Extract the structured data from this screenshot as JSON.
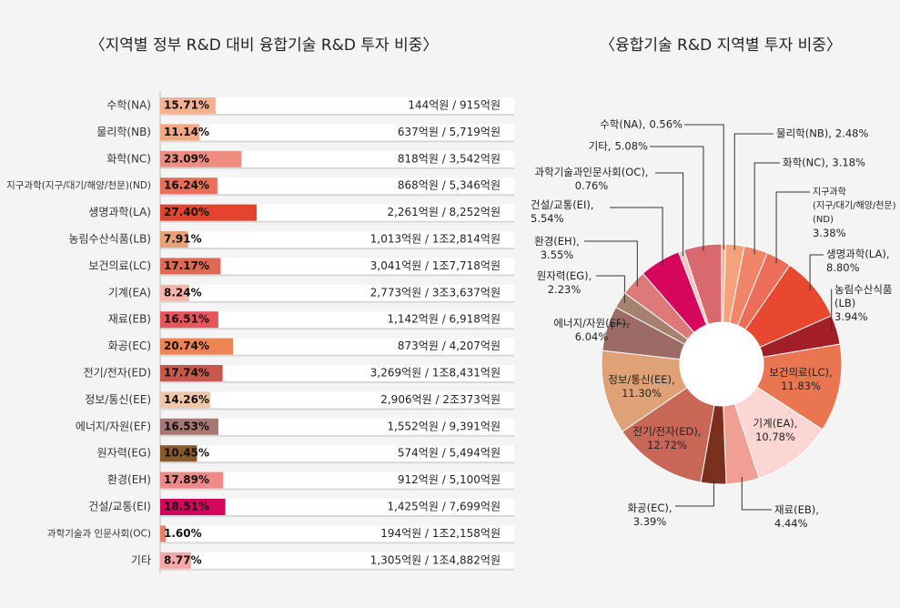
{
  "chart_data": [
    {
      "type": "hbar",
      "title": "〈지역별 정부 R&D 대비 융합기술 R&D 투자 비중〉",
      "categories": [
        "수학(NA)",
        "물리학(NB)",
        "화학(NC)",
        "지구과학(지구/대기/해양/천문)(ND)",
        "생명과학(LA)",
        "농림수산식품(LB)",
        "보건의료(LC)",
        "기계(EA)",
        "재료(EB)",
        "화공(EC)",
        "전기/전자(ED)",
        "정보/통신(EE)",
        "에너지/자원(EF)",
        "원자력(EG)",
        "환경(EH)",
        "건설/교통(EI)",
        "과학기술과 인문사회(OC)",
        "기타"
      ],
      "values": [
        15.71,
        11.14,
        23.09,
        16.24,
        27.4,
        7.91,
        17.17,
        8.24,
        16.51,
        20.74,
        17.74,
        14.26,
        16.53,
        10.45,
        17.89,
        18.51,
        1.6,
        8.77
      ],
      "value_labels": [
        "15.71%",
        "11.14%",
        "23.09%",
        "16.24%",
        "27.40%",
        "7.91%",
        "17.17%",
        "8.24%",
        "16.51%",
        "20.74%",
        "17.74%",
        "14.26%",
        "16.53%",
        "10.45%",
        "17.89%",
        "18.51%",
        "1.60%",
        "8.77%"
      ],
      "annotations": [
        "144억원 / 915억원",
        "637억원 / 5,719억원",
        "818억원 / 3,542억원",
        "868억원 / 5,346억원",
        "2,261억원 / 8,252억원",
        "1,013억원 / 1조2,814억원",
        "3,041억원 / 1조7,718억원",
        "2,773억원 / 3조3,637억원",
        "1,142억원 / 6,918억원",
        "873억원 / 4,207억원",
        "3,269억원 / 1조8,431억원",
        "2,906억원 / 2조373억원",
        "1,552억원 / 9,391억원",
        "574억원 / 5,494억원",
        "912억원 / 5,100억원",
        "1,425억원 / 7,699억원",
        "194억원 / 1조2,158억원",
        "1,305억원 / 1조4,882억원"
      ],
      "colors": [
        "#f4b193",
        "#f2a882",
        "#ee8e80",
        "#e96f5b",
        "#e4442f",
        "#e8a277",
        "#de6a56",
        "#f5b6ae",
        "#e8555a",
        "#ee8452",
        "#c8574c",
        "#f1c6a8",
        "#a97772",
        "#8b5a2b",
        "#ee8a88",
        "#d4065b",
        "#ec7d66",
        "#f4a9a8"
      ]
    },
    {
      "type": "donut",
      "title": "〈융합기술 R&D 지역별 투자 비중〉",
      "categories": [
        "수학(NA),",
        "물리학(NB),",
        "화학(NC),",
        "지구과학\n(지구/대기/해양/천문)(ND)",
        "생명과학(LA),",
        "농림수산식품(LB)",
        "보건의료(LC),",
        "기계(EA),",
        "재료(EB),",
        "화공(EC),",
        "전기/전자(ED),",
        "정보/통신(EE),",
        "에너지/자원(EF),",
        "원자력(EG),",
        "환경(EH),",
        "건설/교통(EI),",
        "과학기술과인문사회(OC),",
        "기타,"
      ],
      "values": [
        0.56,
        2.48,
        3.18,
        3.38,
        8.8,
        3.94,
        11.83,
        10.78,
        4.44,
        3.39,
        12.72,
        11.3,
        6.04,
        2.23,
        3.55,
        5.54,
        0.76,
        5.08
      ],
      "value_labels": [
        "0.56%",
        "2.48%",
        "3.18%",
        "3.38%",
        "8.80%",
        "3.94%",
        "11.83%",
        "10.78%",
        "4.44%",
        "3.39%",
        "12.72%",
        "11.30%",
        "6.04%",
        "2.23%",
        "3.55%",
        "5.54%",
        "0.76%",
        "5.08%"
      ],
      "colors": [
        "#f4b193",
        "#f3a27c",
        "#f0856a",
        "#ec6d59",
        "#e8482f",
        "#a31f27",
        "#ea7551",
        "#fcd6d3",
        "#f19e95",
        "#7a2f1f",
        "#c96757",
        "#dea276",
        "#9d6b66",
        "#a78170",
        "#de797a",
        "#d5065c",
        "#f0c7c0",
        "#d9686f"
      ]
    }
  ]
}
